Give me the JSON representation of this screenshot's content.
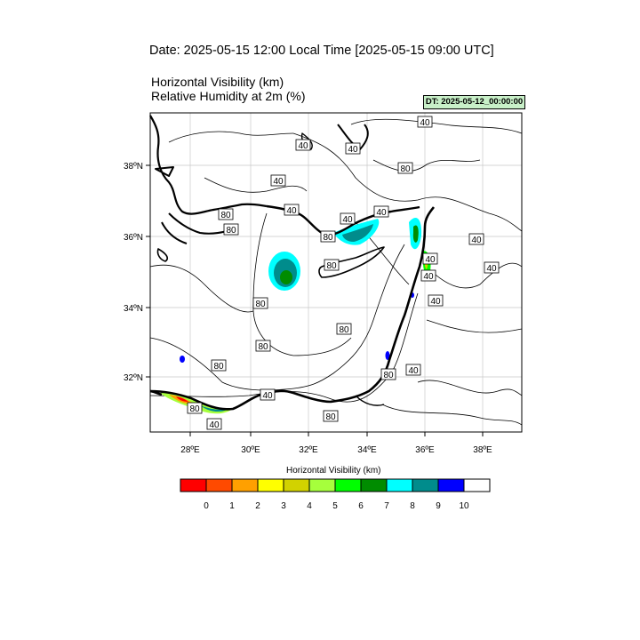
{
  "header": {
    "date_title": "Date: 2025-05-15  12:00 Local Time [2025-05-15  09:00 UTC]",
    "field_line1": "Horizontal Visibility   (km)",
    "field_line2": "Relative Humidity at 2m   (%)",
    "dt_badge": "DT: 2025-05-12_00:00:00"
  },
  "map": {
    "lon_ticks": [
      "28ºE",
      "30ºE",
      "32ºE",
      "34ºE",
      "36ºE",
      "38ºE"
    ],
    "lat_ticks": [
      "38ºN",
      "36ºN",
      "34ºN",
      "32ºN"
    ],
    "contour_labels": [
      "40",
      "40",
      "40",
      "40",
      "80",
      "80",
      "40",
      "80",
      "40",
      "40",
      "80",
      "80",
      "40",
      "40",
      "40",
      "40",
      "80",
      "80",
      "80",
      "80",
      "40",
      "80",
      "40",
      "40",
      "80",
      "40"
    ]
  },
  "colorbar": {
    "title": "Horizontal Visibility  (km)",
    "levels": [
      "0",
      "1",
      "2",
      "3",
      "4",
      "5",
      "6",
      "7",
      "8",
      "9",
      "10"
    ],
    "colors": [
      "#ff0000",
      "#ff4a00",
      "#ffa000",
      "#ffff00",
      "#d2d200",
      "#a6ff3c",
      "#00ff00",
      "#008c00",
      "#00ffff",
      "#008c8c",
      "#0000ff",
      "#ffffff"
    ]
  },
  "colors": {
    "dt_badge_bg": "#c8f0c8",
    "coastline": "#000000",
    "grid": "#c8c8c8"
  }
}
